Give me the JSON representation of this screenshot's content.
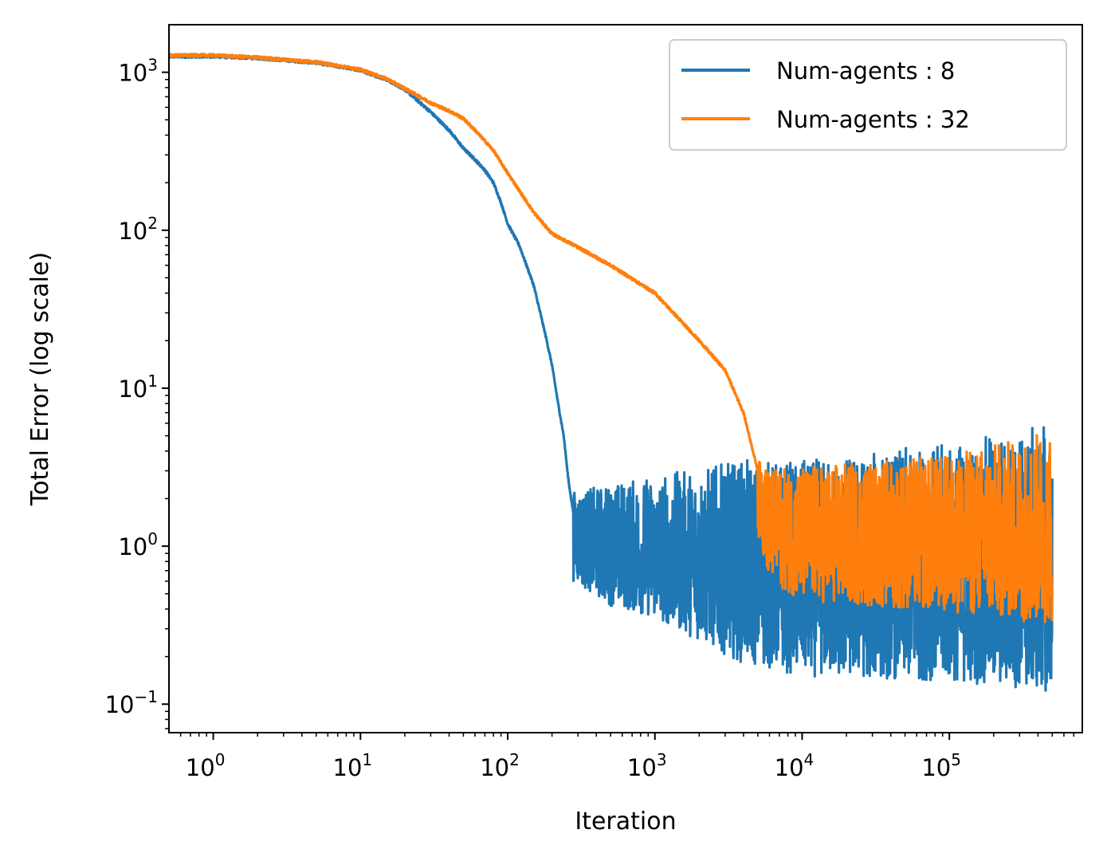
{
  "chart_data": {
    "type": "line",
    "title": "",
    "xlabel": "Iteration",
    "ylabel": "Total Error (log scale)",
    "x_scale": "log",
    "y_scale": "log",
    "xlim": [
      0.5,
      800000
    ],
    "ylim": [
      0.066,
      2000
    ],
    "grid": false,
    "legend_position": "top-right",
    "x_ticks": [
      {
        "value": 1,
        "base": "10",
        "exp": "0"
      },
      {
        "value": 10,
        "base": "10",
        "exp": "1"
      },
      {
        "value": 100,
        "base": "10",
        "exp": "2"
      },
      {
        "value": 1000,
        "base": "10",
        "exp": "3"
      },
      {
        "value": 10000,
        "base": "10",
        "exp": "4"
      },
      {
        "value": 100000,
        "base": "10",
        "exp": "5"
      }
    ],
    "y_ticks": [
      {
        "value": 0.1,
        "base": "10",
        "exp": "−1"
      },
      {
        "value": 1,
        "base": "10",
        "exp": "0"
      },
      {
        "value": 10,
        "base": "10",
        "exp": "1"
      },
      {
        "value": 100,
        "base": "10",
        "exp": "2"
      },
      {
        "value": 1000,
        "base": "10",
        "exp": "3"
      }
    ],
    "series": [
      {
        "name": "Num-agents : 8",
        "color": "#1f77b4",
        "x": [
          0.5,
          1,
          2,
          5,
          10,
          15,
          20,
          30,
          40,
          50,
          60,
          70,
          80,
          90,
          100,
          120,
          150,
          180,
          200,
          220,
          240,
          260,
          280,
          300,
          400,
          500,
          1000,
          2000,
          4000,
          10000,
          100000,
          500000
        ],
        "y": [
          1260,
          1260,
          1230,
          1150,
          1030,
          900,
          780,
          560,
          430,
          330,
          280,
          240,
          200,
          150,
          110,
          80,
          45,
          22,
          14,
          8,
          5,
          2.5,
          1.6,
          1.2,
          0.9,
          0.9,
          0.8,
          0.75,
          0.7,
          0.5,
          0.42,
          0.4
        ],
        "noise": [
          {
            "x": 280,
            "low": 0.6,
            "high": 2.2
          },
          {
            "x": 500,
            "low": 0.42,
            "high": 2.5
          },
          {
            "x": 1000,
            "low": 0.35,
            "high": 2.8
          },
          {
            "x": 4000,
            "low": 0.18,
            "high": 3.5
          },
          {
            "x": 10000,
            "low": 0.15,
            "high": 3.5
          },
          {
            "x": 100000,
            "low": 0.14,
            "high": 4.5
          },
          {
            "x": 500000,
            "low": 0.12,
            "high": 6.0
          }
        ]
      },
      {
        "name": "Num-agents : 32",
        "color": "#ff7f0e",
        "x": [
          0.5,
          1,
          2,
          5,
          10,
          15,
          20,
          30,
          40,
          50,
          60,
          80,
          100,
          150,
          200,
          300,
          500,
          1000,
          2000,
          3000,
          4000,
          5000,
          6000,
          10000,
          100000,
          500000
        ],
        "y": [
          1280,
          1280,
          1240,
          1160,
          1040,
          910,
          790,
          640,
          570,
          510,
          430,
          320,
          230,
          130,
          95,
          78,
          60,
          40,
          20,
          13,
          7,
          3,
          1.5,
          1.1,
          1.1,
          1.1
        ],
        "noise": [
          {
            "x": 5000,
            "low": 1.2,
            "high": 3.5
          },
          {
            "x": 6000,
            "low": 0.6,
            "high": 3.0
          },
          {
            "x": 10000,
            "low": 0.45,
            "high": 3.2
          },
          {
            "x": 100000,
            "low": 0.38,
            "high": 3.8
          },
          {
            "x": 500000,
            "low": 0.32,
            "high": 5.5
          }
        ]
      }
    ]
  }
}
